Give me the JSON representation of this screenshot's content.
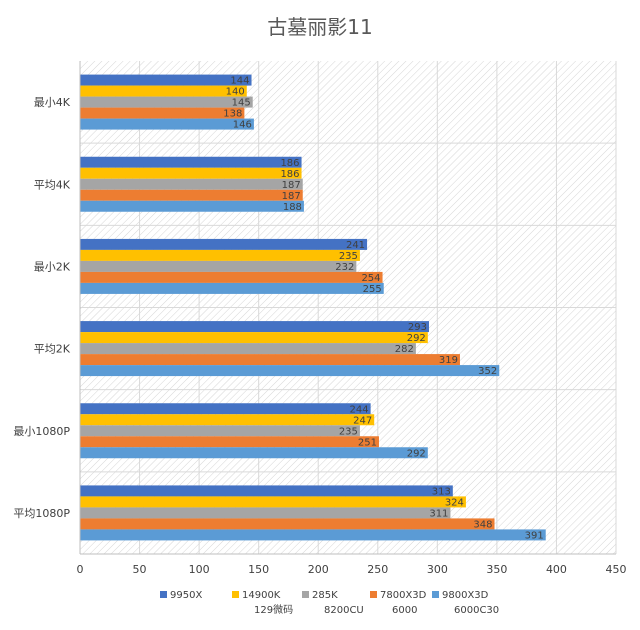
{
  "chart_data": {
    "type": "bar",
    "orientation": "horizontal",
    "title": "古墓丽影11",
    "xlabel": "",
    "ylabel": "",
    "xlim": [
      0,
      450
    ],
    "xticks": [
      "0",
      "50",
      "100",
      "150",
      "200",
      "250",
      "300",
      "350",
      "400",
      "450"
    ],
    "grid": true,
    "legend_position": "bottom",
    "categories": [
      "最小4K",
      "平均4K",
      "最小2K",
      "平均2K",
      "最小1080P",
      "平均1080P"
    ],
    "series": [
      {
        "name": "9950X",
        "legend_lines": [
          "9950X"
        ],
        "color": "#4472c4",
        "values": [
          144,
          186,
          241,
          293,
          244,
          313
        ]
      },
      {
        "name": "14900K 129微码",
        "legend_lines": [
          "14900K",
          "129微码"
        ],
        "color": "#ffc000",
        "values": [
          140,
          186,
          235,
          292,
          247,
          324
        ]
      },
      {
        "name": "285K 8200CU",
        "legend_lines": [
          "285K",
          "8200CU"
        ],
        "color": "#a5a5a5",
        "values": [
          145,
          187,
          232,
          282,
          235,
          311
        ]
      },
      {
        "name": "7800X3D 6000",
        "legend_lines": [
          "7800X3D",
          "6000"
        ],
        "color": "#ed7d31",
        "values": [
          138,
          187,
          254,
          319,
          251,
          348
        ]
      },
      {
        "name": "9800X3D 6000C30",
        "legend_lines": [
          "9800X3D",
          "6000C30"
        ],
        "color": "#5b9bd5",
        "values": [
          146,
          188,
          255,
          352,
          292,
          391
        ]
      }
    ]
  }
}
